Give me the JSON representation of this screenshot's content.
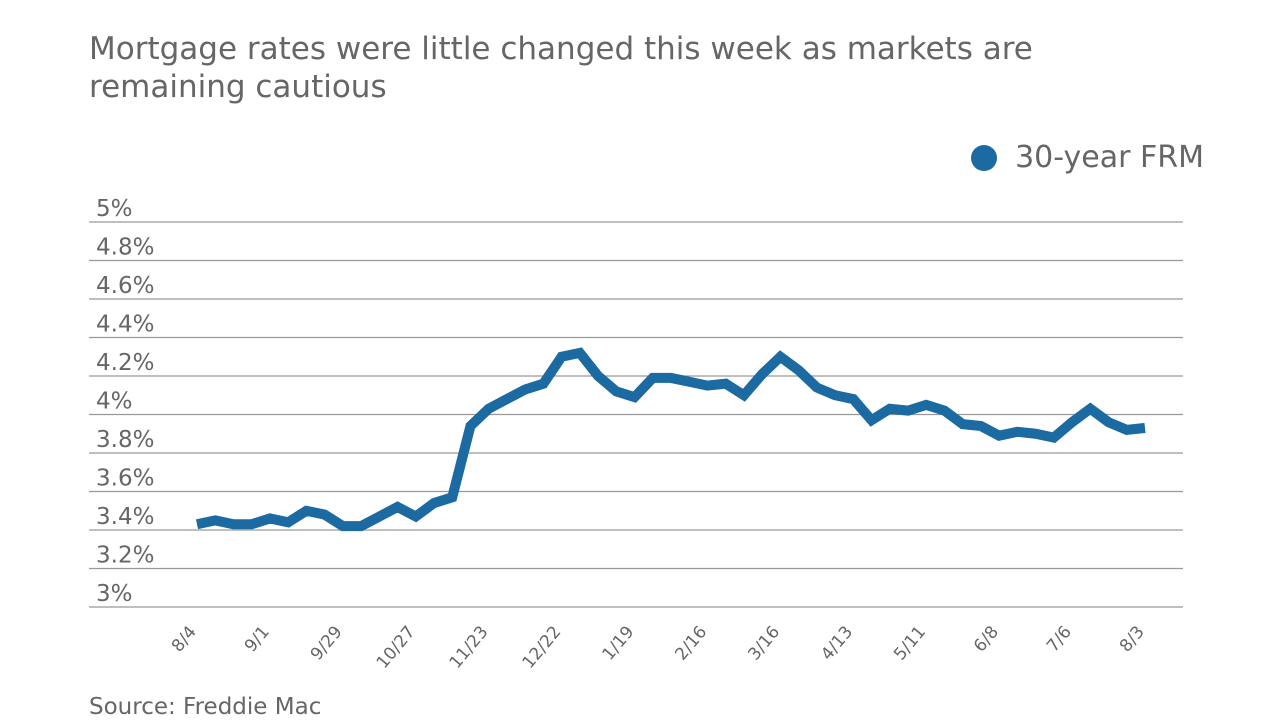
{
  "subtitle": "Mortgage rates were little changed this week as markets are remaining cautious",
  "source": "Source: Freddie Mac",
  "colors": {
    "series": "#1c6aa2",
    "grid": "#999999",
    "text": "#666666"
  },
  "chart_data": {
    "type": "line",
    "title": "",
    "xlabel": "",
    "ylabel": "",
    "ylim": [
      3,
      5
    ],
    "yticks": [
      "3%",
      "3.2%",
      "3.4%",
      "3.6%",
      "3.8%",
      "4%",
      "4.2%",
      "4.4%",
      "4.6%",
      "4.8%",
      "5%"
    ],
    "ytick_values": [
      3,
      3.2,
      3.4,
      3.6,
      3.8,
      4,
      4.2,
      4.4,
      4.6,
      4.8,
      5
    ],
    "grid": true,
    "legend_position": "top-right",
    "xtick_labels": [
      "8/4",
      "9/1",
      "9/29",
      "10/27",
      "11/23",
      "12/22",
      "1/19",
      "2/16",
      "3/16",
      "4/13",
      "5/11",
      "6/8",
      "7/6",
      "8/3"
    ],
    "categories": [
      "8/4",
      "8/11",
      "8/18",
      "8/25",
      "9/1",
      "9/8",
      "9/15",
      "9/22",
      "9/29",
      "10/6",
      "10/13",
      "10/20",
      "10/27",
      "11/3",
      "11/10",
      "11/17",
      "11/23",
      "12/1",
      "12/8",
      "12/15",
      "12/22",
      "12/29",
      "1/5",
      "1/12",
      "1/19",
      "1/26",
      "2/2",
      "2/9",
      "2/16",
      "2/23",
      "3/2",
      "3/9",
      "3/16",
      "3/23",
      "3/30",
      "4/6",
      "4/13",
      "4/20",
      "4/27",
      "5/4",
      "5/11",
      "5/18",
      "5/25",
      "6/1",
      "6/8",
      "6/15",
      "6/22",
      "6/29",
      "7/6",
      "7/13",
      "7/20",
      "7/27",
      "8/3"
    ],
    "series": [
      {
        "name": "30-year FRM",
        "values": [
          3.43,
          3.45,
          3.43,
          3.43,
          3.46,
          3.44,
          3.5,
          3.48,
          3.42,
          3.42,
          3.47,
          3.52,
          3.47,
          3.54,
          3.57,
          3.94,
          4.03,
          4.08,
          4.13,
          4.16,
          4.3,
          4.32,
          4.2,
          4.12,
          4.09,
          4.19,
          4.19,
          4.17,
          4.15,
          4.16,
          4.1,
          4.21,
          4.3,
          4.23,
          4.14,
          4.1,
          4.08,
          3.97,
          4.03,
          4.02,
          4.05,
          4.02,
          3.95,
          3.94,
          3.89,
          3.91,
          3.9,
          3.88,
          3.96,
          4.03,
          3.96,
          3.92,
          3.93
        ]
      }
    ]
  }
}
